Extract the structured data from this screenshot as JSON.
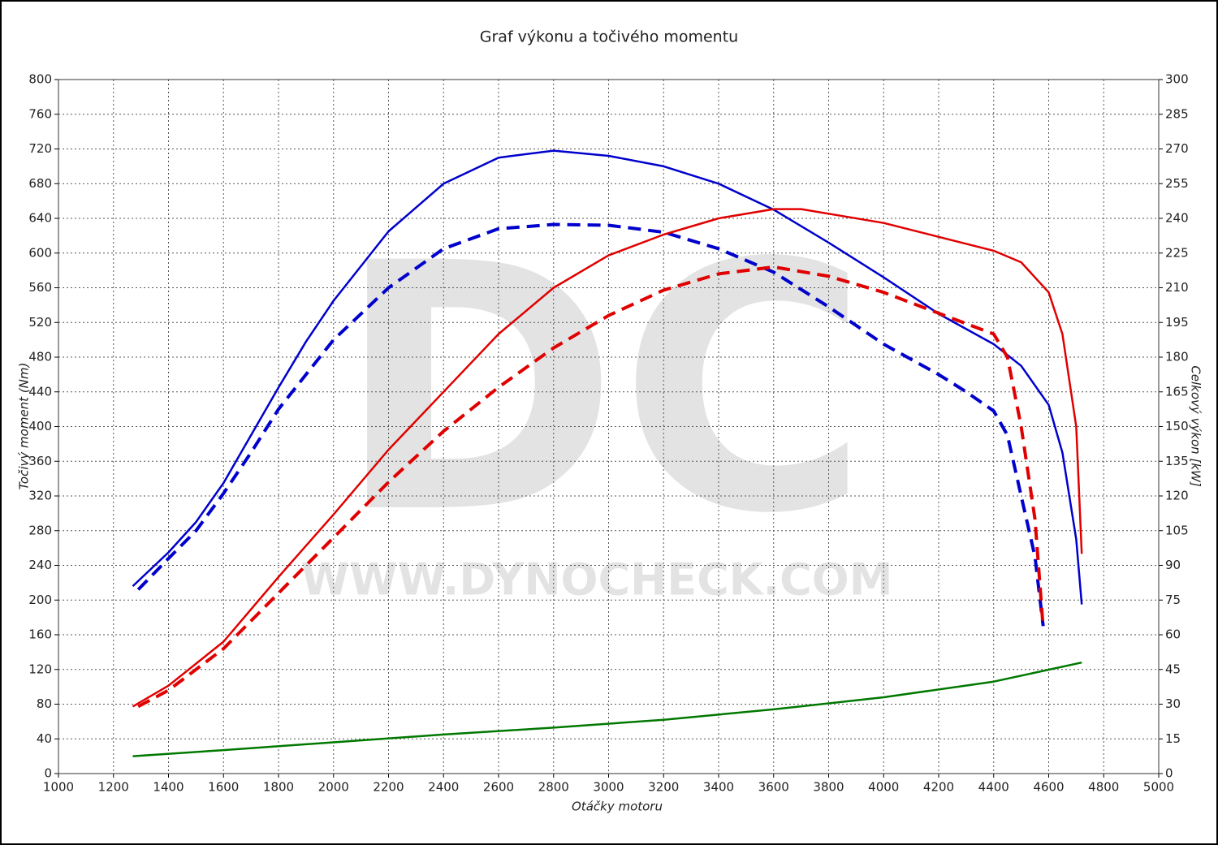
{
  "chart_data": {
    "type": "line",
    "title": "Graf výkonu a točivého momentu",
    "xlabel": "Otáčky motoru",
    "ylabel": "Točivý moment (Nm)",
    "y2label": "Celkový výkon [kW]",
    "watermark": {
      "logo": "DC",
      "url": "WWW.DYNOCHECK.COM"
    },
    "grid": true,
    "xlim": [
      1000,
      5000
    ],
    "xticks": [
      1000,
      1200,
      1400,
      1600,
      1800,
      2000,
      2200,
      2400,
      2600,
      2800,
      3000,
      3200,
      3400,
      3600,
      3800,
      4000,
      4200,
      4400,
      4600,
      4800,
      5000
    ],
    "ylim": [
      0,
      800
    ],
    "yticks": [
      0,
      40,
      80,
      120,
      160,
      200,
      240,
      280,
      320,
      360,
      400,
      440,
      480,
      520,
      560,
      600,
      640,
      680,
      720,
      760,
      800
    ],
    "y2lim": [
      0,
      300
    ],
    "y2ticks": [
      0,
      15,
      30,
      45,
      60,
      75,
      90,
      105,
      120,
      135,
      150,
      165,
      180,
      195,
      210,
      225,
      240,
      255,
      270,
      285,
      300
    ],
    "series": [
      {
        "color": "#0000cc",
        "dash": false,
        "axis": "y",
        "x": [
          1270,
          1400,
          1500,
          1600,
          1700,
          1800,
          1900,
          2000,
          2200,
          2400,
          2600,
          2800,
          3000,
          3200,
          3400,
          3600,
          3800,
          4000,
          4200,
          4400,
          4500,
          4600,
          4650,
          4700,
          4720
        ],
        "values": [
          216,
          255,
          290,
          335,
          390,
          445,
          498,
          545,
          625,
          680,
          710,
          718,
          712,
          700,
          680,
          650,
          612,
          572,
          530,
          495,
          470,
          425,
          370,
          270,
          195
        ]
      },
      {
        "color": "#0000cc",
        "dash": true,
        "axis": "y",
        "x": [
          1290,
          1400,
          1500,
          1600,
          1700,
          1800,
          2000,
          2200,
          2400,
          2600,
          2800,
          3000,
          3200,
          3400,
          3600,
          3800,
          4000,
          4200,
          4300,
          4400,
          4450,
          4500,
          4550,
          4580
        ],
        "values": [
          212,
          248,
          280,
          323,
          370,
          420,
          500,
          560,
          605,
          628,
          633,
          632,
          624,
          605,
          578,
          538,
          495,
          460,
          440,
          418,
          390,
          320,
          250,
          170
        ]
      },
      {
        "color": "#e00000",
        "dash": false,
        "axis": "y2",
        "x": [
          1270,
          1400,
          1600,
          1800,
          2000,
          2200,
          2400,
          2600,
          2800,
          3000,
          3200,
          3400,
          3600,
          3700,
          3800,
          4000,
          4200,
          4400,
          4500,
          4600,
          4650,
          4700,
          4720
        ],
        "values": [
          29,
          38,
          57,
          85,
          112,
          140,
          165,
          190,
          210,
          224,
          233,
          240,
          244,
          244,
          242,
          238,
          232,
          226,
          221,
          208,
          190,
          150,
          95
        ]
      },
      {
        "color": "#e00000",
        "dash": true,
        "axis": "y2",
        "x": [
          1290,
          1400,
          1600,
          1800,
          2000,
          2200,
          2400,
          2600,
          2800,
          3000,
          3200,
          3400,
          3600,
          3800,
          4000,
          4200,
          4400,
          4450,
          4500,
          4550,
          4580
        ],
        "values": [
          29,
          36,
          54,
          78,
          102,
          126,
          148,
          167,
          184,
          198,
          209,
          216,
          219,
          215,
          208,
          199,
          190,
          180,
          150,
          110,
          63
        ]
      },
      {
        "color": "#007800",
        "dash": false,
        "axis": "y",
        "x": [
          1270,
          1600,
          2000,
          2400,
          2800,
          3200,
          3600,
          4000,
          4400,
          4720
        ],
        "values": [
          20,
          27,
          36,
          45,
          53,
          62,
          74,
          88,
          106,
          128
        ]
      }
    ]
  }
}
